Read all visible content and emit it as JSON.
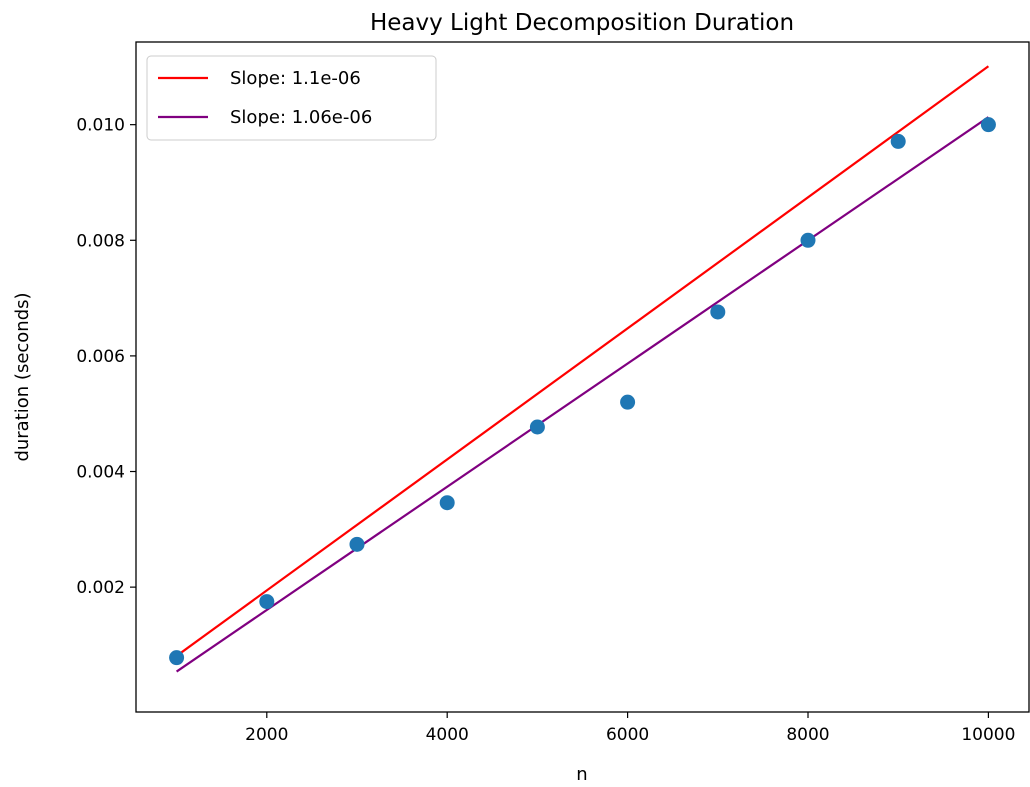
{
  "chart_data": {
    "type": "scatter",
    "title": "Heavy Light Decomposition Duration",
    "xlabel": "n",
    "ylabel": "duration (seconds)",
    "xlim": [
      550,
      10450
    ],
    "ylim": [
      -0.00016,
      0.01143
    ],
    "xticks": [
      2000,
      4000,
      6000,
      8000,
      10000
    ],
    "xtick_labels": [
      "2000",
      "4000",
      "6000",
      "8000",
      "10000"
    ],
    "yticks": [
      0.002,
      0.004,
      0.006,
      0.008,
      0.01
    ],
    "ytick_labels": [
      "0.002",
      "0.004",
      "0.006",
      "0.008",
      "0.010"
    ],
    "grid": false,
    "legend_position": "top-left",
    "points": {
      "color": "#1f77b4",
      "x": [
        1000,
        2000,
        3000,
        4000,
        5000,
        6000,
        7000,
        8000,
        9000,
        10000
      ],
      "y": [
        0.00078,
        0.00175,
        0.00274,
        0.00346,
        0.00477,
        0.0052,
        0.00676,
        0.008,
        0.00971,
        0.01
      ]
    },
    "series": [
      {
        "name": "Slope: 1.1e-06",
        "type": "line",
        "color": "#ff0000",
        "x": [
          1000,
          10000
        ],
        "y": [
          0.00081,
          0.01101
        ]
      },
      {
        "name": "Slope: 1.06e-06",
        "type": "line",
        "color": "#800080",
        "x": [
          1000,
          10000
        ],
        "y": [
          0.00054,
          0.01013
        ]
      }
    ]
  }
}
